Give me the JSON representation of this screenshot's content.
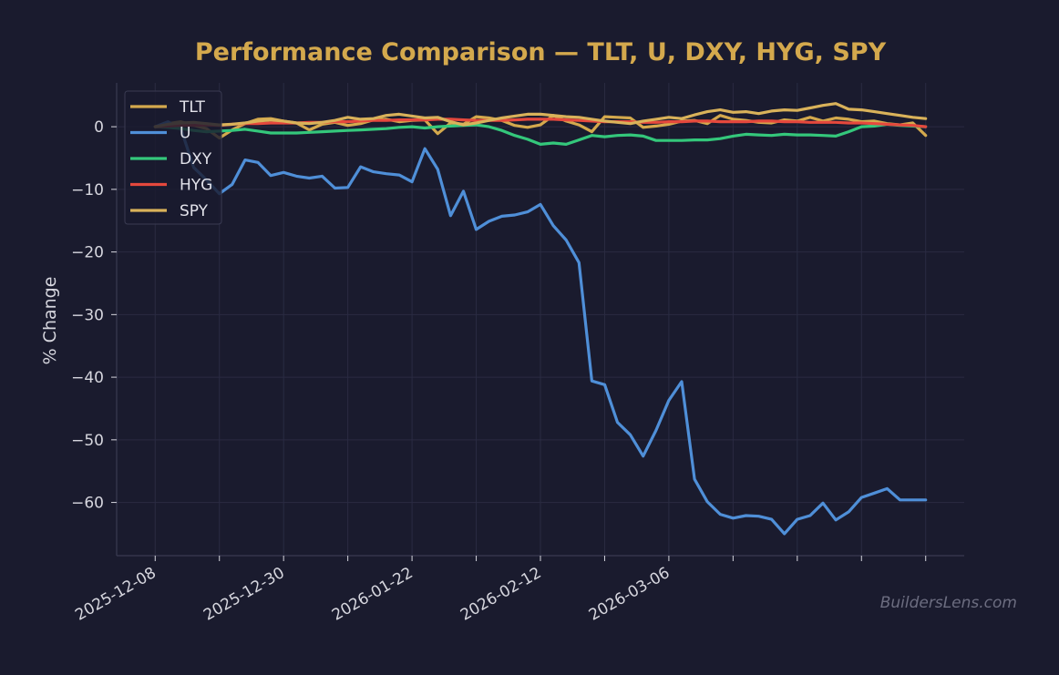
{
  "colors": {
    "background": "#1a1b2e",
    "grid": "#2a2b42",
    "axis": "#3a3b52",
    "title": "#d4a94d",
    "TLT": "#d4a94d",
    "U": "#4f8fd8",
    "DXY": "#34c77b",
    "HYG": "#e5483d",
    "SPY": "#d9b25a"
  },
  "watermark": "BuildersLens.com",
  "chart_data": {
    "type": "line",
    "title": "Performance Comparison — TLT, U, DXY, HYG, SPY",
    "xlabel": "",
    "ylabel": "% Change",
    "x_ticks": [
      "2025-12-08",
      "2025-12-30",
      "2026-01-22",
      "2026-02-12",
      "2026-03-06"
    ],
    "x_tick_indices": [
      0,
      20,
      40,
      60,
      80
    ],
    "x_range": [
      -6,
      126
    ],
    "ylim": [
      -68.5,
      7
    ],
    "y_ticks": [
      0,
      -10,
      -20,
      -30,
      -40,
      -50,
      -60
    ],
    "y_tick_labels": [
      "0",
      "−10",
      "−20",
      "−30",
      "−40",
      "−50",
      "−60"
    ],
    "grid": true,
    "legend_position": "top-left",
    "series": [
      {
        "name": "TLT",
        "x": [
          0,
          2,
          4,
          6,
          8,
          10,
          12,
          14,
          16,
          18,
          20,
          22,
          24,
          26,
          28,
          30,
          32,
          34,
          36,
          38,
          40,
          42,
          44,
          46,
          48,
          50,
          52,
          54,
          56,
          58,
          60,
          62,
          64,
          66,
          68,
          70,
          72,
          74,
          76,
          78,
          80,
          82,
          84,
          86,
          88,
          90,
          92,
          94,
          96,
          98,
          100,
          102,
          104,
          106,
          108,
          110,
          112,
          114,
          116,
          118,
          120
        ],
        "y": [
          0,
          0.5,
          0.8,
          0.2,
          -0.3,
          -1.8,
          -0.5,
          0.5,
          1.2,
          1.3,
          0.9,
          0.6,
          -0.5,
          0.4,
          0.7,
          0.2,
          0.5,
          1.1,
          1.2,
          0.8,
          1.0,
          1.1,
          -1.1,
          0.6,
          0.4,
          1.6,
          1.4,
          1.0,
          0.2,
          -0.1,
          0.3,
          1.8,
          0.9,
          0.3,
          -0.8,
          1.6,
          1.5,
          1.4,
          -0.1,
          0.1,
          0.4,
          0.9,
          1.0,
          0.5,
          1.8,
          1.2,
          1.0,
          0.7,
          0.6,
          1.1,
          0.9,
          1.5,
          0.9,
          1.4,
          1.2,
          0.8,
          0.9,
          0.5,
          0.3,
          0.6,
          -1.4
        ]
      },
      {
        "name": "U",
        "x": [
          0,
          2,
          4,
          6,
          8,
          10,
          12,
          14,
          16,
          18,
          20,
          22,
          24,
          26,
          28,
          30,
          32,
          34,
          36,
          38,
          40,
          42,
          44,
          46,
          48,
          50,
          52,
          54,
          56,
          58,
          60,
          62,
          64,
          66,
          68,
          70,
          72,
          74,
          76,
          78,
          80,
          82,
          84,
          86,
          88,
          90,
          92,
          94,
          96,
          98,
          100,
          102,
          104,
          106,
          108,
          110,
          112,
          114,
          116,
          118,
          120
        ],
        "y": [
          0,
          0.8,
          -0.3,
          -6.5,
          -8.5,
          -10.7,
          -9.2,
          -5.3,
          -5.7,
          -7.8,
          -7.3,
          -7.9,
          -8.2,
          -7.9,
          -9.8,
          -9.7,
          -6.4,
          -7.2,
          -7.5,
          -7.7,
          -8.8,
          -3.5,
          -6.8,
          -14.2,
          -10.3,
          -16.4,
          -15.1,
          -14.3,
          -14.1,
          -13.6,
          -12.4,
          -15.8,
          -18.1,
          -21.7,
          -40.6,
          -41.2,
          -47.2,
          -49.2,
          -52.6,
          -48.5,
          -43.7,
          -40.7,
          -56.3,
          -59.9,
          -61.9,
          -62.5,
          -62.1,
          -62.2,
          -62.7,
          -65.0,
          -62.7,
          -62.1,
          -60.1,
          -62.8,
          -61.5,
          -59.2,
          -58.5,
          -57.8,
          -59.6,
          -59.6,
          -59.6
        ]
      },
      {
        "name": "DXY",
        "x": [
          0,
          2,
          4,
          6,
          8,
          10,
          12,
          14,
          16,
          18,
          20,
          22,
          24,
          26,
          28,
          30,
          32,
          34,
          36,
          38,
          40,
          42,
          44,
          46,
          48,
          50,
          52,
          54,
          56,
          58,
          60,
          62,
          64,
          66,
          68,
          70,
          72,
          74,
          76,
          78,
          80,
          82,
          84,
          86,
          88,
          90,
          92,
          94,
          96,
          98,
          100,
          102,
          104,
          106,
          108,
          110,
          112,
          114,
          116,
          118,
          120
        ],
        "y": [
          0,
          -0.1,
          -0.3,
          -0.6,
          -0.8,
          -0.7,
          -0.6,
          -0.4,
          -0.7,
          -1.0,
          -1.0,
          -1.0,
          -0.9,
          -0.8,
          -0.7,
          -0.6,
          -0.5,
          -0.4,
          -0.3,
          -0.1,
          0.0,
          -0.2,
          0.0,
          0.1,
          0.2,
          0.3,
          0.0,
          -0.6,
          -1.4,
          -2.0,
          -2.8,
          -2.6,
          -2.8,
          -2.1,
          -1.4,
          -1.6,
          -1.4,
          -1.3,
          -1.5,
          -2.2,
          -2.2,
          -2.2,
          -2.1,
          -2.1,
          -1.9,
          -1.5,
          -1.2,
          -1.3,
          -1.4,
          -1.2,
          -1.3,
          -1.3,
          -1.4,
          -1.5,
          -0.8,
          0.0,
          0.1,
          0.4,
          0.2,
          0.1,
          0.0
        ]
      },
      {
        "name": "HYG",
        "x": [
          0,
          2,
          4,
          6,
          8,
          10,
          12,
          14,
          16,
          18,
          20,
          22,
          24,
          26,
          28,
          30,
          32,
          34,
          36,
          38,
          40,
          42,
          44,
          46,
          48,
          50,
          52,
          54,
          56,
          58,
          60,
          62,
          64,
          66,
          68,
          70,
          72,
          74,
          76,
          78,
          80,
          82,
          84,
          86,
          88,
          90,
          92,
          94,
          96,
          98,
          100,
          102,
          104,
          106,
          108,
          110,
          112,
          114,
          116,
          118,
          120
        ],
        "y": [
          0,
          0.1,
          0.2,
          0.2,
          0.3,
          0.2,
          0.4,
          0.5,
          0.5,
          0.6,
          0.6,
          0.6,
          0.7,
          0.7,
          0.8,
          0.8,
          0.9,
          1.0,
          1.0,
          1.1,
          1.1,
          1.1,
          1.2,
          1.2,
          1.1,
          1.0,
          1.0,
          1.0,
          1.1,
          1.2,
          1.2,
          1.2,
          1.1,
          1.0,
          0.9,
          0.8,
          0.8,
          0.8,
          0.7,
          0.7,
          0.8,
          0.8,
          0.9,
          0.9,
          0.8,
          0.8,
          0.8,
          0.9,
          0.9,
          0.8,
          0.8,
          0.7,
          0.7,
          0.7,
          0.6,
          0.6,
          0.5,
          0.4,
          0.3,
          0.2,
          0.0
        ]
      },
      {
        "name": "SPY",
        "x": [
          0,
          2,
          4,
          6,
          8,
          10,
          12,
          14,
          16,
          18,
          20,
          22,
          24,
          26,
          28,
          30,
          32,
          34,
          36,
          38,
          40,
          42,
          44,
          46,
          48,
          50,
          52,
          54,
          56,
          58,
          60,
          62,
          64,
          66,
          68,
          70,
          72,
          74,
          76,
          78,
          80,
          82,
          84,
          86,
          88,
          90,
          92,
          94,
          96,
          98,
          100,
          102,
          104,
          106,
          108,
          110,
          112,
          114,
          116,
          118,
          120
        ],
        "y": [
          0,
          0.4,
          0.6,
          0.7,
          0.5,
          0.3,
          0.4,
          0.6,
          0.9,
          1.1,
          0.9,
          0.6,
          0.5,
          0.7,
          1.0,
          1.5,
          1.2,
          1.3,
          1.8,
          2.0,
          1.7,
          1.4,
          1.5,
          0.8,
          0.3,
          0.6,
          1.0,
          1.4,
          1.7,
          2.0,
          2.0,
          1.8,
          1.6,
          1.5,
          1.2,
          0.9,
          0.7,
          0.5,
          0.9,
          1.2,
          1.5,
          1.3,
          1.9,
          2.4,
          2.7,
          2.3,
          2.4,
          2.1,
          2.5,
          2.7,
          2.6,
          3.0,
          3.4,
          3.7,
          2.8,
          2.7,
          2.4,
          2.1,
          1.8,
          1.5,
          1.3
        ]
      }
    ]
  }
}
